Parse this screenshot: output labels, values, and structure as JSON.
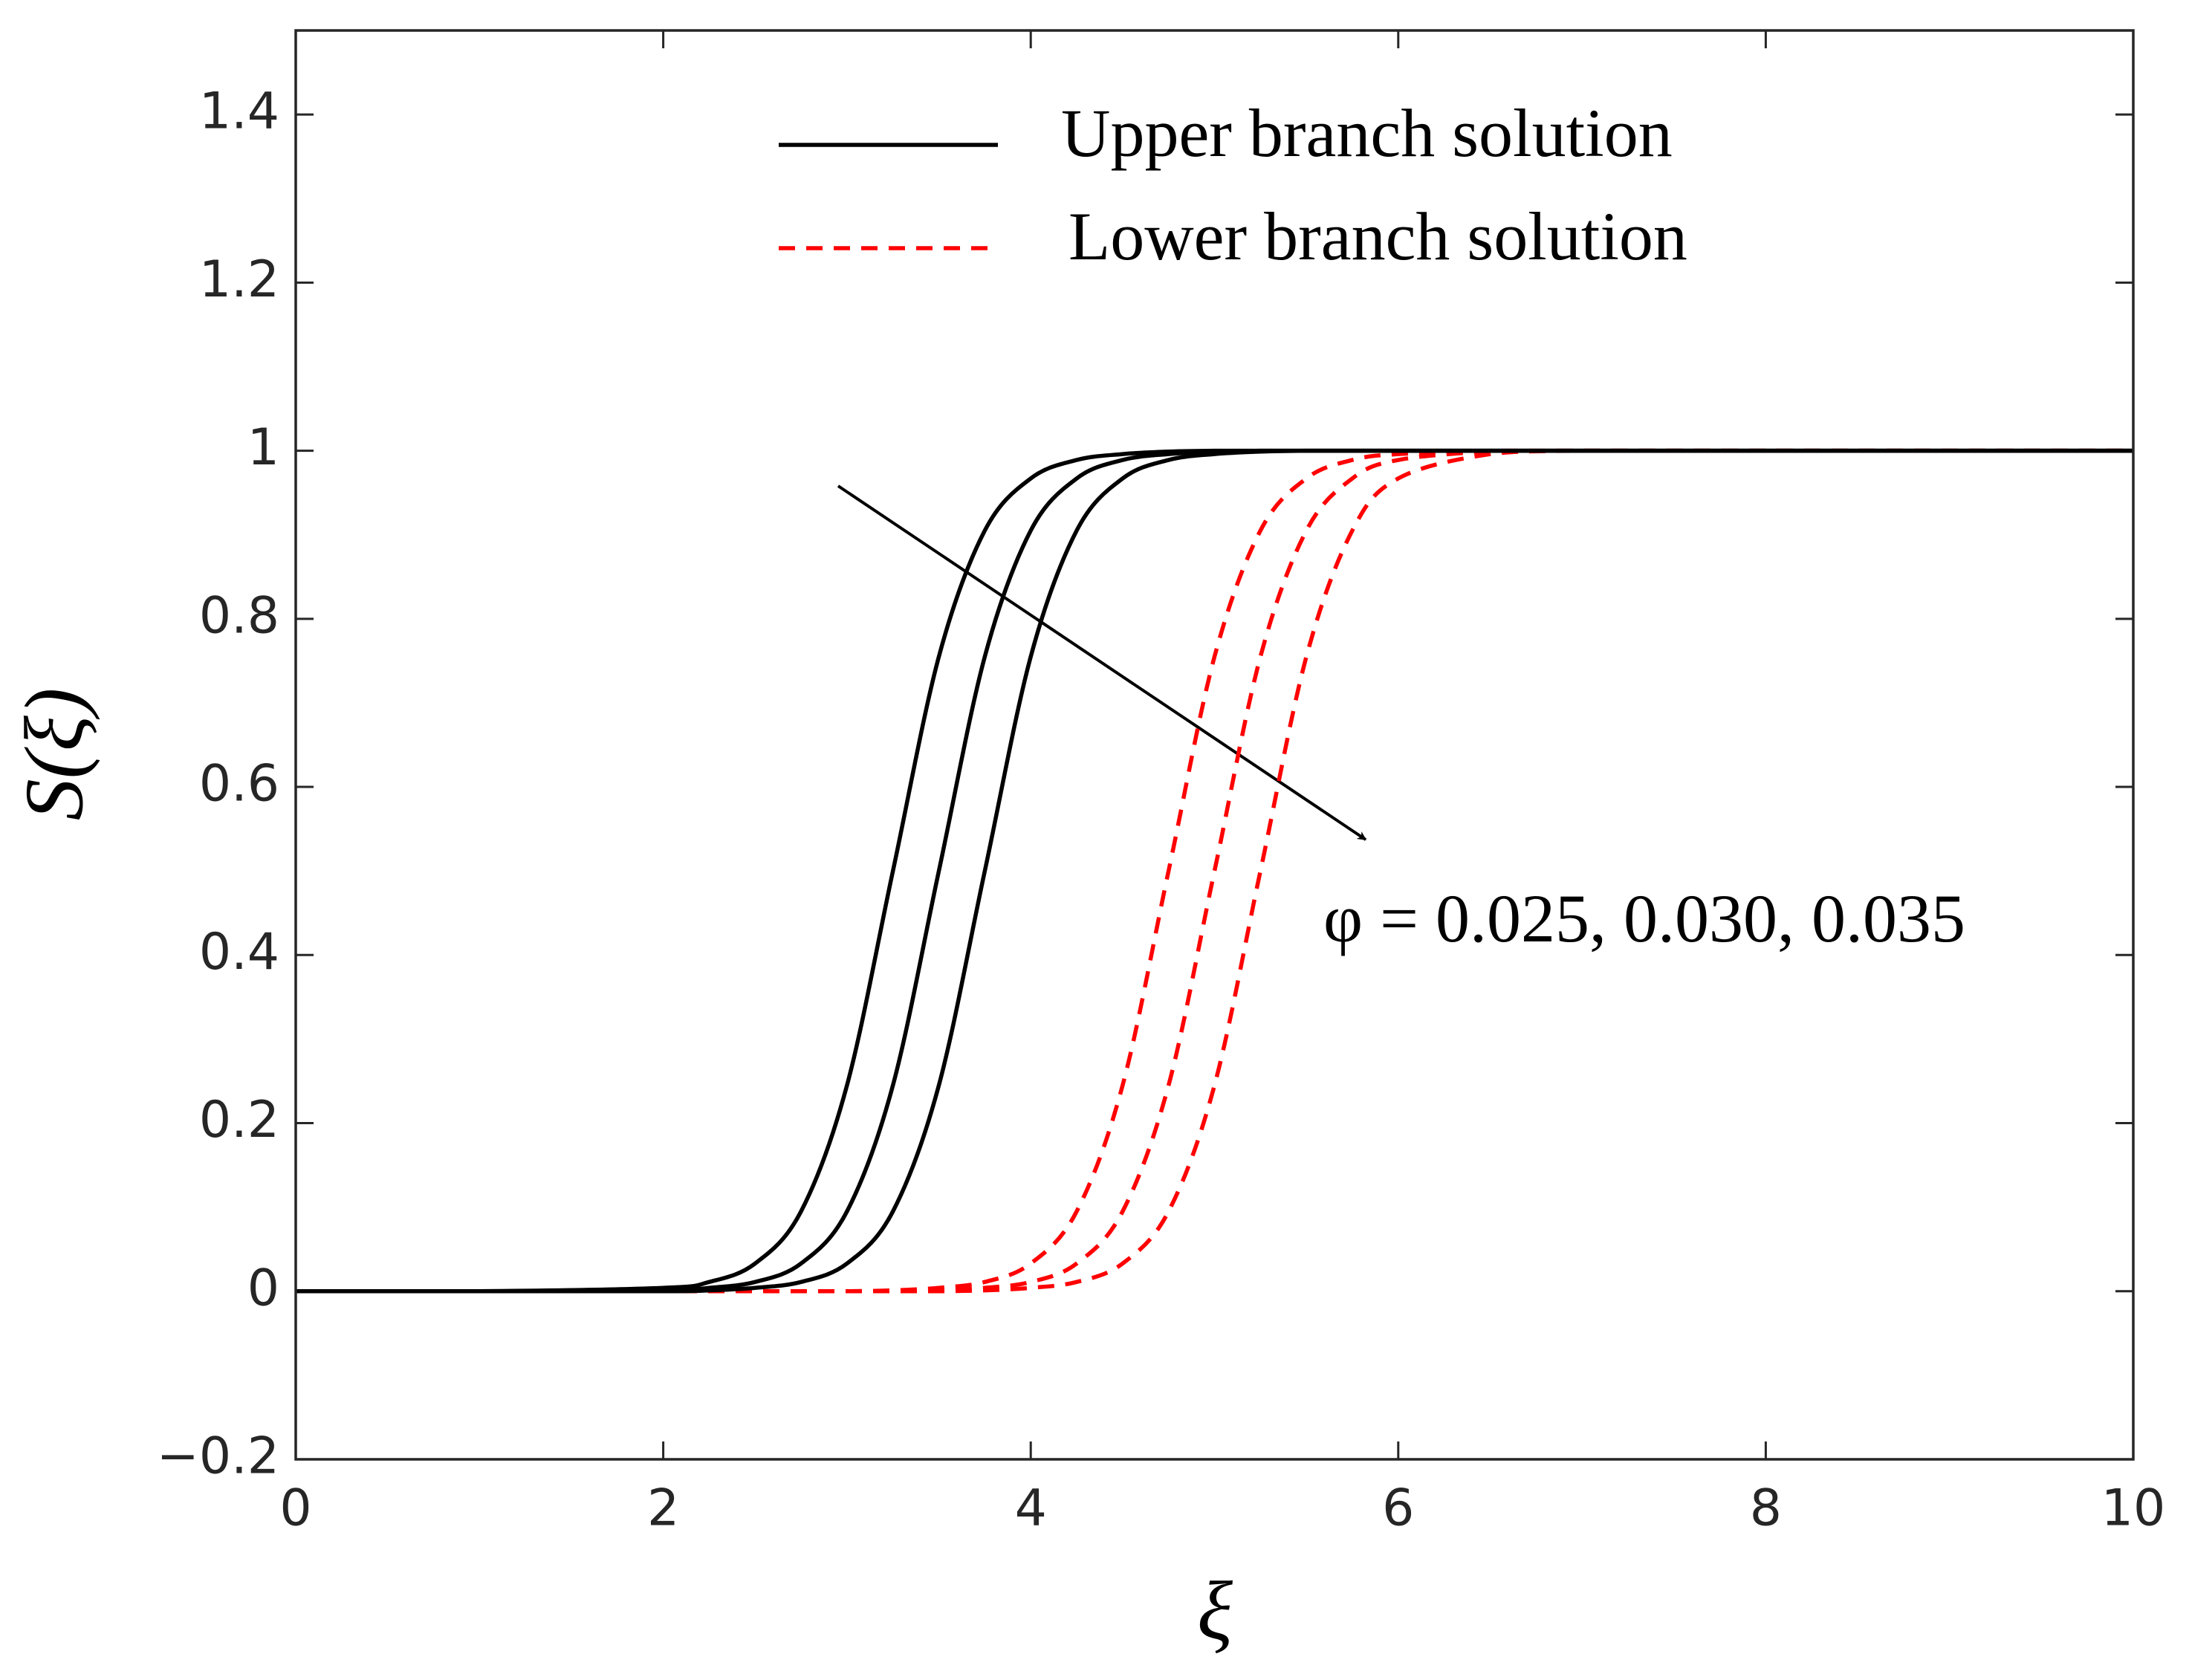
{
  "chart_data": {
    "type": "line",
    "xlabel": "ξ",
    "ylabel": "S(ξ)",
    "annotation": "φ = 0.025, 0.030, 0.035",
    "x": [
      0,
      1,
      2,
      2.25,
      2.5,
      2.75,
      3,
      3.25,
      3.5,
      3.75,
      4,
      4.25,
      4.5,
      4.75,
      5,
      5.25,
      5.5,
      5.75,
      6,
      6.5,
      7,
      8,
      9,
      10
    ],
    "series": [
      {
        "name": "Upper branch solution",
        "color": "#000000",
        "dashed": false,
        "curves": [
          [
            0,
            0,
            0.004,
            0.011,
            0.033,
            0.095,
            0.245,
            0.5,
            0.755,
            0.905,
            0.967,
            0.989,
            0.996,
            0.999,
            1,
            1,
            1,
            1,
            1,
            1,
            1,
            1,
            1,
            1
          ],
          [
            0,
            0,
            0.001,
            0.004,
            0.011,
            0.033,
            0.095,
            0.245,
            0.5,
            0.755,
            0.905,
            0.967,
            0.989,
            0.996,
            0.999,
            1,
            1,
            1,
            1,
            1,
            1,
            1,
            1,
            1
          ],
          [
            0,
            0,
            0,
            0.001,
            0.004,
            0.011,
            0.033,
            0.095,
            0.245,
            0.5,
            0.755,
            0.905,
            0.967,
            0.989,
            0.996,
            0.999,
            1,
            1,
            1,
            1,
            1,
            1,
            1,
            1
          ]
        ]
      },
      {
        "name": "Lower branch solution",
        "color": "#ff0000",
        "dashed": true,
        "curves": [
          [
            0,
            0,
            0,
            0,
            0,
            0,
            0,
            0.001,
            0.004,
            0.011,
            0.033,
            0.095,
            0.245,
            0.5,
            0.755,
            0.905,
            0.967,
            0.989,
            0.996,
            1,
            1,
            1,
            1,
            1
          ],
          [
            0,
            0,
            0,
            0,
            0,
            0,
            0,
            0,
            0.001,
            0.004,
            0.011,
            0.033,
            0.095,
            0.245,
            0.5,
            0.755,
            0.905,
            0.967,
            0.989,
            0.999,
            1,
            1,
            1,
            1
          ],
          [
            0,
            0,
            0,
            0,
            0,
            0,
            0,
            0,
            0,
            0.001,
            0.004,
            0.011,
            0.033,
            0.095,
            0.245,
            0.5,
            0.755,
            0.905,
            0.967,
            0.996,
            1,
            1,
            1,
            1
          ]
        ]
      }
    ],
    "xlim": [
      0,
      10
    ],
    "xticks": [
      0,
      2,
      4,
      6,
      8,
      10
    ],
    "ylim": [
      -0.2,
      1.5
    ],
    "yticks": [
      {
        "value": -0.2,
        "label": "−0.2"
      },
      0,
      0.2,
      0.4,
      0.6,
      0.8,
      1,
      1.2,
      1.4
    ],
    "grid": false,
    "legend": "upper right"
  }
}
